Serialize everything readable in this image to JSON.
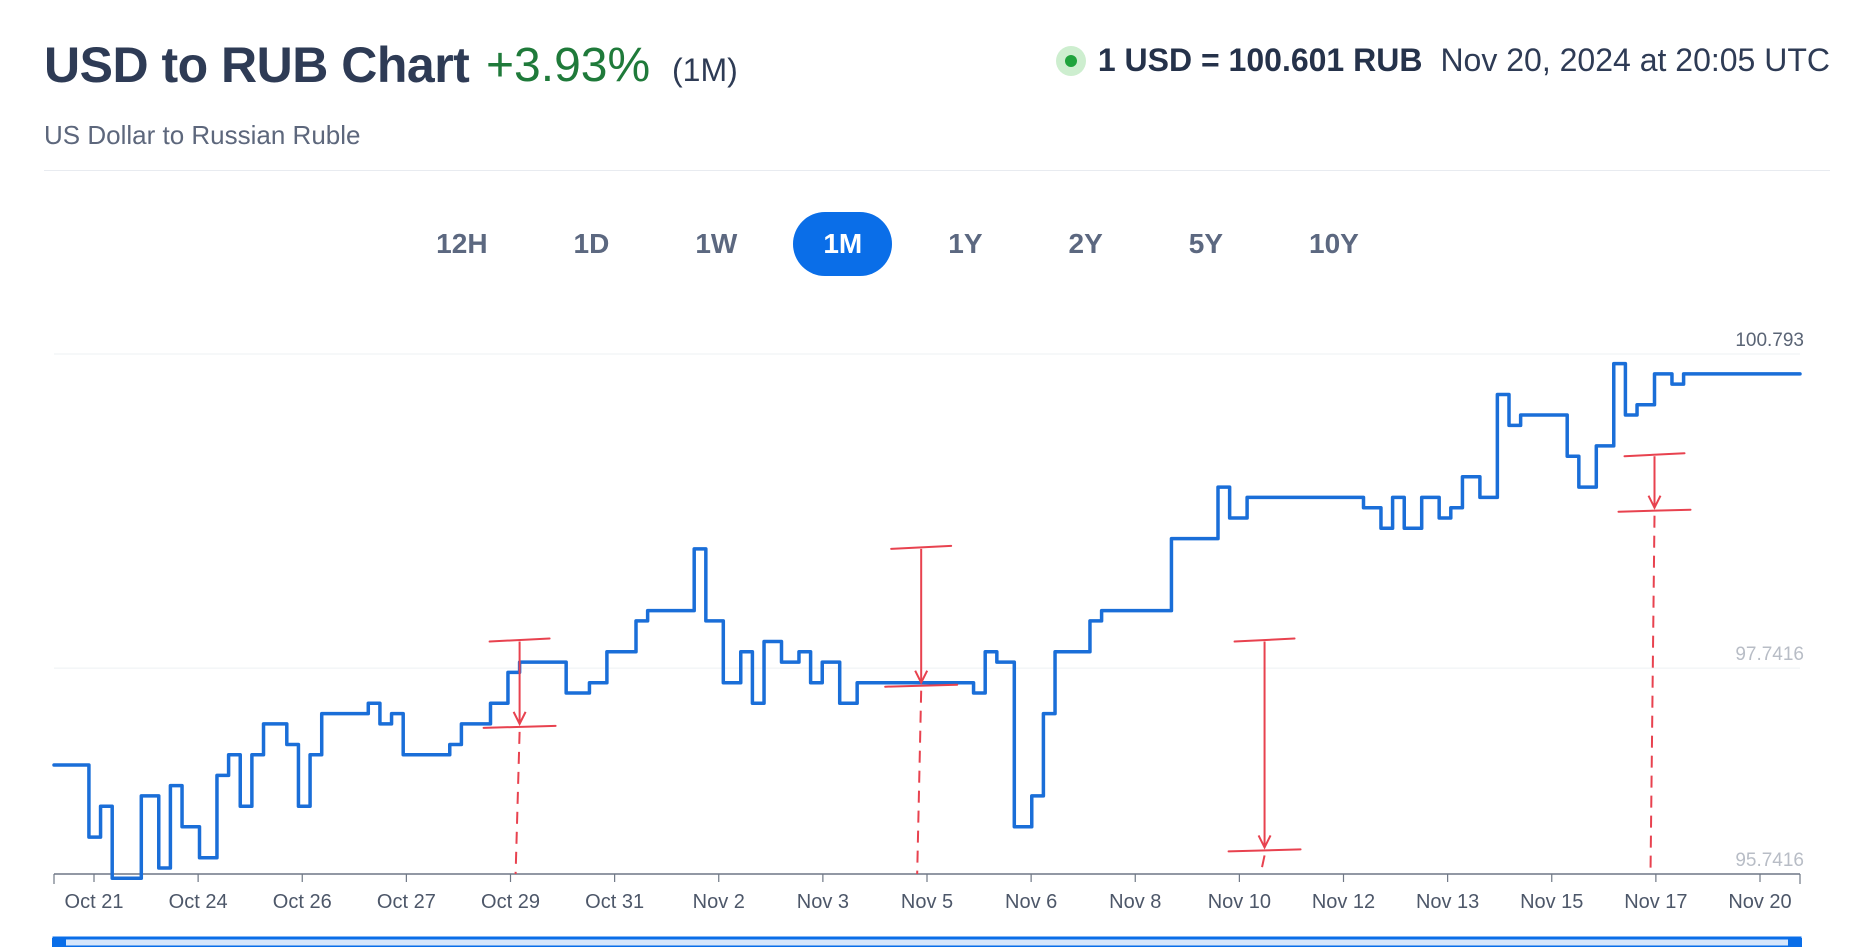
{
  "header": {
    "title": "USD to RUB Chart",
    "change": "+3.93%",
    "period": "(1M)",
    "subtitle": "US Dollar to Russian Ruble",
    "rate": "1 USD = 100.601 RUB",
    "timestamp": "Nov 20, 2024 at 20:05 UTC"
  },
  "tabs": [
    {
      "label": "12H",
      "active": false
    },
    {
      "label": "1D",
      "active": false
    },
    {
      "label": "1W",
      "active": false
    },
    {
      "label": "1M",
      "active": true
    },
    {
      "label": "1Y",
      "active": false
    },
    {
      "label": "2Y",
      "active": false
    },
    {
      "label": "5Y",
      "active": false
    },
    {
      "label": "10Y",
      "active": false
    }
  ],
  "colors": {
    "line": "#1a6ed8",
    "positive": "#1f7a3a",
    "accent": "#0a6ee8",
    "annotation": "#e8424f"
  },
  "chart_data": {
    "type": "line",
    "series": [
      {
        "x": [
          0,
          0.3,
          0.6,
          0.8,
          1.0,
          1.2,
          1.5,
          1.8,
          2.0,
          2.2,
          2.5,
          2.8,
          3.0,
          3.2,
          3.4,
          3.6,
          3.8,
          4.0,
          4.2,
          4.4,
          4.6,
          4.8,
          5.0,
          5.2,
          5.4,
          5.6,
          5.8,
          6.0,
          6.2,
          6.5,
          6.8,
          7.0,
          7.2,
          7.5,
          7.8,
          8.0,
          8.2,
          8.5,
          8.8,
          9.0,
          9.2,
          9.5,
          9.8,
          10.0,
          10.2,
          10.5,
          10.8,
          11.0,
          11.2,
          11.5,
          11.8,
          12.0,
          12.2,
          12.5,
          12.8,
          13.0,
          13.2,
          13.5,
          13.8,
          14.0,
          14.2,
          14.5,
          14.8,
          15.0,
          15.2,
          15.5,
          15.8,
          16.0,
          16.2,
          16.5,
          16.8,
          17.0,
          17.2,
          17.5,
          17.8,
          18.0,
          18.2,
          18.5,
          18.8,
          19.0,
          19.2,
          19.5,
          19.8,
          20.0,
          20.2,
          20.5,
          20.8,
          21.0,
          21.2,
          21.5,
          21.8,
          22.0,
          22.2,
          22.5,
          22.8,
          23.0,
          23.2,
          23.5,
          23.8,
          24.0,
          24.2,
          24.5,
          24.8,
          25.0,
          25.2,
          25.5,
          25.8,
          26.0,
          26.2,
          26.5,
          26.8,
          27.0,
          27.2,
          27.5,
          27.8,
          28.0,
          28.2,
          28.5,
          28.8,
          29.0,
          29.2,
          29.5,
          29.8,
          30.0
        ],
        "y": [
          96.8,
          96.8,
          96.1,
          96.4,
          95.7,
          95.7,
          96.5,
          95.8,
          96.6,
          96.2,
          95.9,
          96.7,
          96.9,
          96.4,
          96.9,
          97.2,
          97.2,
          97.0,
          96.4,
          96.9,
          97.3,
          97.3,
          97.3,
          97.3,
          97.4,
          97.2,
          97.3,
          96.9,
          96.9,
          96.9,
          97.0,
          97.2,
          97.2,
          97.4,
          97.7,
          97.8,
          97.8,
          97.8,
          97.5,
          97.5,
          97.6,
          97.9,
          97.9,
          98.2,
          98.3,
          98.3,
          98.3,
          98.9,
          98.2,
          97.6,
          97.9,
          97.4,
          98.0,
          97.8,
          97.9,
          97.6,
          97.8,
          97.4,
          97.6,
          97.6,
          97.6,
          97.6,
          97.6,
          97.6,
          97.6,
          97.6,
          97.5,
          97.9,
          97.8,
          96.2,
          96.5,
          97.3,
          97.9,
          97.9,
          98.2,
          98.3,
          98.3,
          98.3,
          98.3,
          98.3,
          99.0,
          99.0,
          99.0,
          99.5,
          99.2,
          99.4,
          99.4,
          99.4,
          99.4,
          99.4,
          99.4,
          99.4,
          99.4,
          99.3,
          99.1,
          99.4,
          99.1,
          99.4,
          99.2,
          99.3,
          99.6,
          99.4,
          100.4,
          100.1,
          100.2,
          100.2,
          100.2,
          99.8,
          99.5,
          99.9,
          100.7,
          100.2,
          100.3,
          100.6,
          100.5,
          100.6,
          100.6,
          100.6,
          100.6,
          100.6,
          100.6,
          100.6,
          100.6,
          100.6
        ]
      }
    ],
    "x_tick_labels": [
      "Oct 21",
      "Oct 24",
      "Oct 26",
      "Oct 27",
      "Oct 29",
      "Oct 31",
      "Nov 2",
      "Nov 3",
      "Nov 5",
      "Nov 6",
      "Nov 8",
      "Nov 10",
      "Nov 12",
      "Nov 13",
      "Nov 15",
      "Nov 17",
      "Nov 20"
    ],
    "y_labels": [
      "100.793",
      "97.7416",
      "95.7416"
    ],
    "y_values": [
      100.793,
      97.7416,
      95.7416
    ],
    "ylim": [
      95.7416,
      100.793
    ],
    "xlim": [
      0,
      30
    ],
    "annotations": [
      {
        "x": 8.0,
        "top": 98.0,
        "bottom": 97.2
      },
      {
        "x": 14.9,
        "top": 98.9,
        "bottom": 97.6
      },
      {
        "x": 20.8,
        "top": 98.0,
        "bottom": 96.0
      },
      {
        "x": 27.5,
        "top": 99.8,
        "bottom": 99.3
      }
    ],
    "grid": true,
    "legend": "none"
  }
}
